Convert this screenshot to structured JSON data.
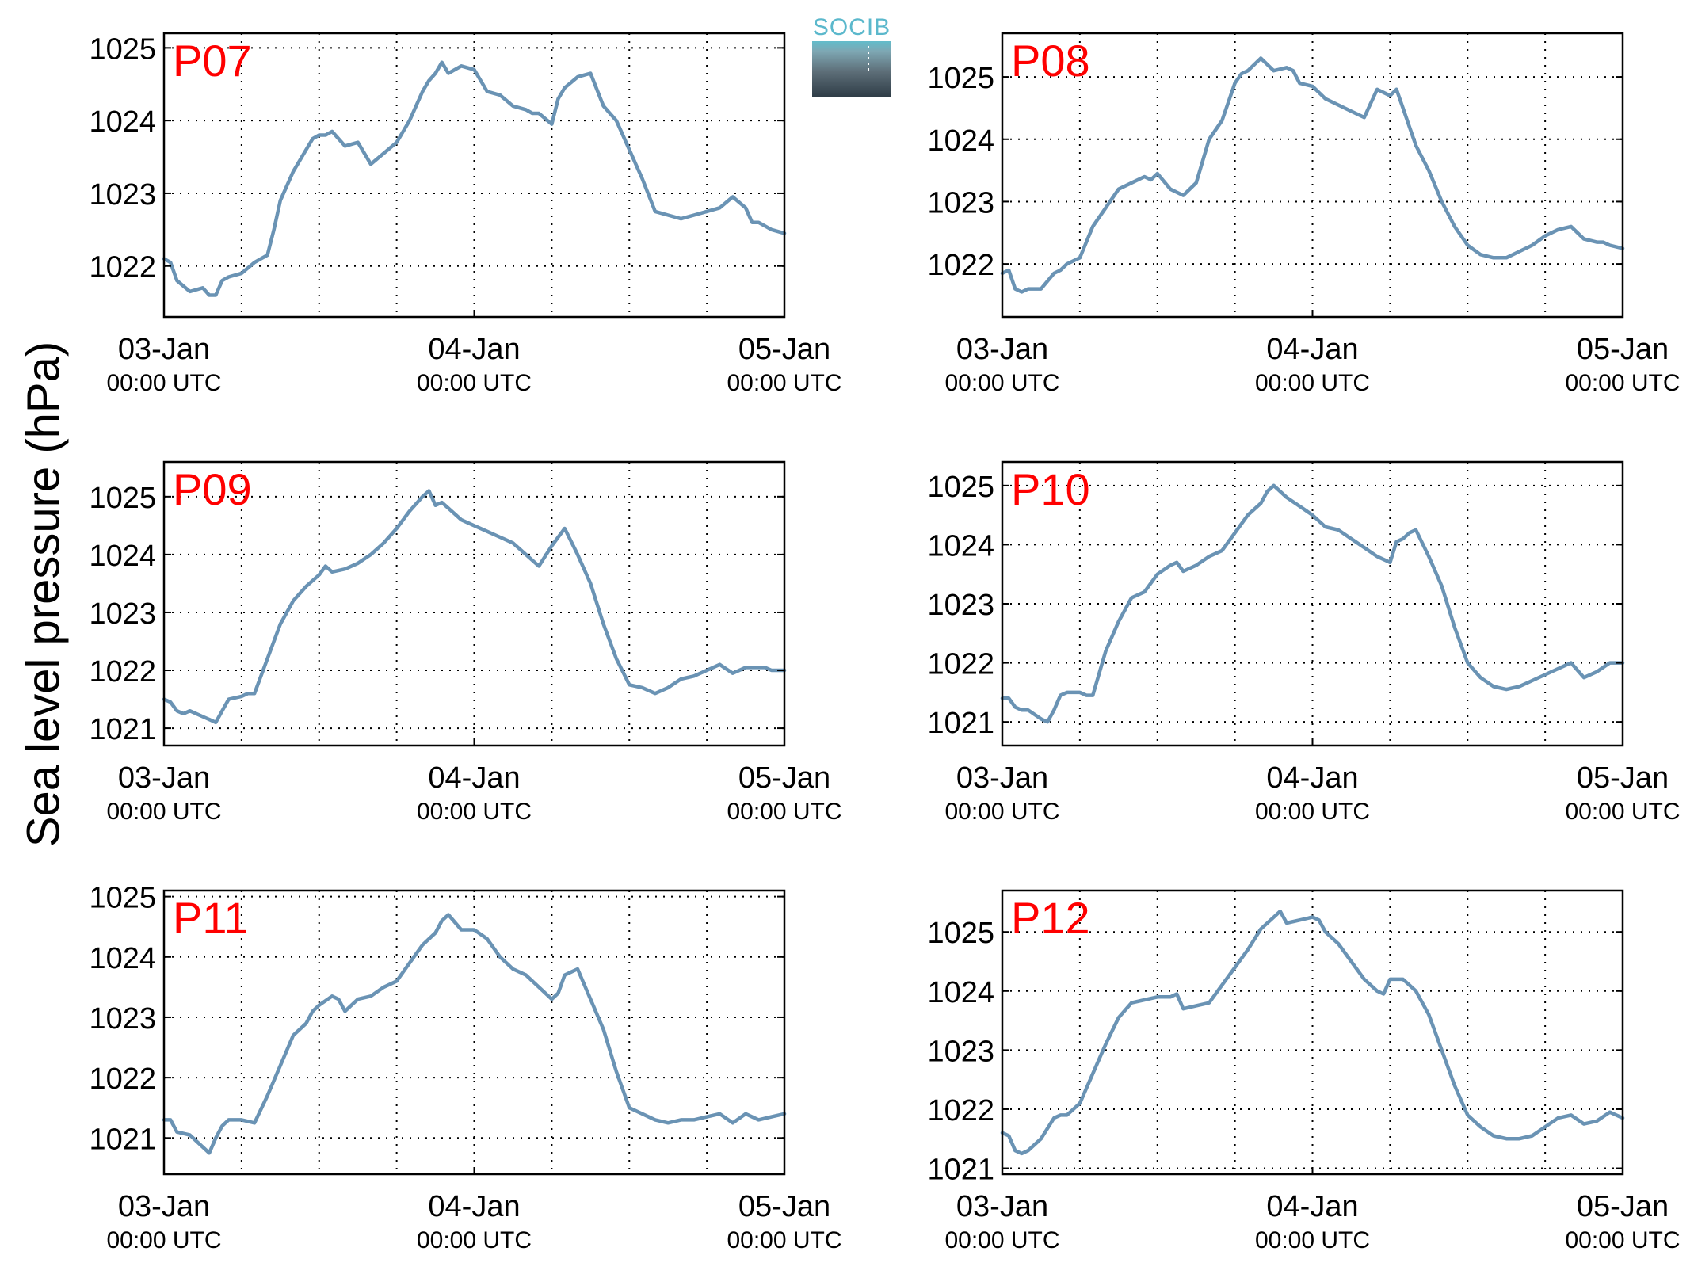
{
  "figure": {
    "ylabel": "Sea level pressure (hPa)",
    "logo_text": "SOCIB",
    "line_color": "#6a93b4",
    "station_label_color": "#ff0000"
  },
  "chart_data": [
    {
      "type": "line",
      "title": "P07",
      "x_unit": "hours since 03-Jan 00:00 UTC",
      "x_ticks": [
        {
          "value": 0,
          "day": "03-Jan",
          "time": "00:00 UTC"
        },
        {
          "value": 24,
          "day": "04-Jan",
          "time": "00:00 UTC"
        },
        {
          "value": 48,
          "day": "05-Jan",
          "time": "00:00 UTC"
        }
      ],
      "xlim": [
        0,
        48
      ],
      "ylim": [
        1021.3,
        1025.2
      ],
      "y_ticks": [
        1022,
        1023,
        1024,
        1025
      ],
      "grid": true,
      "series": [
        {
          "x": [
            0,
            0.5,
            1,
            2,
            3,
            3.5,
            4,
            4.5,
            5,
            6,
            7,
            7.5,
            8,
            8.5,
            9,
            10,
            11,
            11.5,
            12,
            12.5,
            13,
            14,
            15,
            16,
            17,
            18,
            19,
            20,
            20.5,
            21,
            21.5,
            22,
            23,
            24,
            25,
            26,
            27,
            28,
            28.5,
            29,
            30,
            30.5,
            31,
            32,
            33,
            34,
            35,
            36,
            37,
            38,
            39,
            40,
            41,
            42,
            43,
            44,
            45,
            45.5,
            46,
            47,
            48
          ],
          "y": [
            1022.1,
            1022.05,
            1021.8,
            1021.65,
            1021.7,
            1021.6,
            1021.6,
            1021.8,
            1021.85,
            1021.9,
            1022.05,
            1022.1,
            1022.15,
            1022.5,
            1022.9,
            1023.3,
            1023.6,
            1023.75,
            1023.8,
            1023.8,
            1023.85,
            1023.65,
            1023.7,
            1023.4,
            1023.55,
            1023.7,
            1024.0,
            1024.4,
            1024.55,
            1024.65,
            1024.8,
            1024.65,
            1024.75,
            1024.7,
            1024.4,
            1024.35,
            1024.2,
            1024.15,
            1024.1,
            1024.1,
            1023.95,
            1024.3,
            1024.45,
            1024.6,
            1024.65,
            1024.2,
            1024.0,
            1023.6,
            1023.2,
            1022.75,
            1022.7,
            1022.65,
            1022.7,
            1022.75,
            1022.8,
            1022.95,
            1022.8,
            1022.6,
            1022.6,
            1022.5,
            1022.45
          ]
        }
      ]
    },
    {
      "type": "line",
      "title": "P08",
      "x_unit": "hours since 03-Jan 00:00 UTC",
      "x_ticks": [
        {
          "value": 0,
          "day": "03-Jan",
          "time": "00:00 UTC"
        },
        {
          "value": 24,
          "day": "04-Jan",
          "time": "00:00 UTC"
        },
        {
          "value": 48,
          "day": "05-Jan",
          "time": "00:00 UTC"
        }
      ],
      "xlim": [
        0,
        48
      ],
      "ylim": [
        1021.15,
        1025.7
      ],
      "y_ticks": [
        1022,
        1023,
        1024,
        1025
      ],
      "grid": true,
      "series": [
        {
          "x": [
            0,
            0.5,
            1,
            1.5,
            2,
            3,
            4,
            4.5,
            5,
            6,
            7,
            8,
            9,
            10,
            11,
            11.5,
            12,
            13,
            14,
            15,
            16,
            17,
            18,
            18.5,
            19,
            20,
            21,
            22,
            22.5,
            23,
            24,
            25,
            26,
            27,
            28,
            29,
            30,
            30.5,
            31,
            31.5,
            32,
            33,
            34,
            35,
            36,
            37,
            38,
            38.5,
            39,
            40,
            41,
            42,
            43,
            44,
            45,
            46,
            46.5,
            47,
            48
          ],
          "y": [
            1021.85,
            1021.9,
            1021.6,
            1021.55,
            1021.6,
            1021.6,
            1021.85,
            1021.9,
            1022.0,
            1022.1,
            1022.6,
            1022.9,
            1023.2,
            1023.3,
            1023.4,
            1023.35,
            1023.45,
            1023.2,
            1023.1,
            1023.3,
            1024.0,
            1024.3,
            1024.9,
            1025.05,
            1025.1,
            1025.3,
            1025.1,
            1025.15,
            1025.1,
            1024.9,
            1024.85,
            1024.65,
            1024.55,
            1024.45,
            1024.35,
            1024.8,
            1024.7,
            1024.8,
            1024.5,
            1024.2,
            1023.9,
            1023.5,
            1023.0,
            1022.6,
            1022.3,
            1022.15,
            1022.1,
            1022.1,
            1022.1,
            1022.2,
            1022.3,
            1022.45,
            1022.55,
            1022.6,
            1022.4,
            1022.35,
            1022.35,
            1022.3,
            1022.25
          ]
        }
      ]
    },
    {
      "type": "line",
      "title": "P09",
      "x_unit": "hours since 03-Jan 00:00 UTC",
      "x_ticks": [
        {
          "value": 0,
          "day": "03-Jan",
          "time": "00:00 UTC"
        },
        {
          "value": 24,
          "day": "04-Jan",
          "time": "00:00 UTC"
        },
        {
          "value": 48,
          "day": "05-Jan",
          "time": "00:00 UTC"
        }
      ],
      "xlim": [
        0,
        48
      ],
      "ylim": [
        1020.7,
        1025.6
      ],
      "y_ticks": [
        1021,
        1022,
        1023,
        1024,
        1025
      ],
      "grid": true,
      "series": [
        {
          "x": [
            0,
            0.5,
            1,
            1.5,
            2,
            3,
            3.5,
            4,
            4.5,
            5,
            6,
            6.5,
            7,
            8,
            9,
            10,
            11,
            12,
            12.5,
            13,
            14,
            15,
            16,
            17,
            18,
            19,
            20,
            20.5,
            21,
            21.5,
            22,
            23,
            24,
            25,
            26,
            27,
            28,
            29,
            30,
            30.5,
            31,
            32,
            33,
            34,
            35,
            36,
            37,
            38,
            39,
            40,
            41,
            42,
            43,
            44,
            45,
            46,
            46.5,
            47,
            48
          ],
          "y": [
            1021.5,
            1021.45,
            1021.3,
            1021.25,
            1021.3,
            1021.2,
            1021.15,
            1021.1,
            1021.3,
            1021.5,
            1021.55,
            1021.6,
            1021.6,
            1022.2,
            1022.8,
            1023.2,
            1023.45,
            1023.65,
            1023.8,
            1023.7,
            1023.75,
            1023.85,
            1024.0,
            1024.2,
            1024.45,
            1024.75,
            1025.0,
            1025.1,
            1024.85,
            1024.9,
            1024.8,
            1024.6,
            1024.5,
            1024.4,
            1024.3,
            1024.2,
            1024.0,
            1023.8,
            1024.15,
            1024.3,
            1024.45,
            1024.0,
            1023.5,
            1022.8,
            1022.2,
            1021.75,
            1021.7,
            1021.6,
            1021.7,
            1021.85,
            1021.9,
            1022.0,
            1022.1,
            1021.95,
            1022.05,
            1022.05,
            1022.05,
            1022.0,
            1022.0
          ]
        }
      ]
    },
    {
      "type": "line",
      "title": "P10",
      "x_unit": "hours since 03-Jan 00:00 UTC",
      "x_ticks": [
        {
          "value": 0,
          "day": "03-Jan",
          "time": "00:00 UTC"
        },
        {
          "value": 24,
          "day": "04-Jan",
          "time": "00:00 UTC"
        },
        {
          "value": 48,
          "day": "05-Jan",
          "time": "00:00 UTC"
        }
      ],
      "xlim": [
        0,
        48
      ],
      "ylim": [
        1020.6,
        1025.4
      ],
      "y_ticks": [
        1021,
        1022,
        1023,
        1024,
        1025
      ],
      "grid": true,
      "series": [
        {
          "x": [
            0,
            0.5,
            1,
            1.5,
            2,
            3,
            3.5,
            4,
            4.5,
            5,
            6,
            6.5,
            7,
            8,
            9,
            10,
            11,
            12,
            13,
            13.5,
            14,
            15,
            16,
            17,
            18,
            19,
            20,
            20.5,
            21,
            22,
            23,
            24,
            25,
            26,
            27,
            28,
            29,
            30,
            30.5,
            31,
            31.5,
            32,
            33,
            34,
            35,
            36,
            37,
            38,
            39,
            40,
            41,
            42,
            43,
            44,
            45,
            46,
            47,
            48
          ],
          "y": [
            1021.4,
            1021.4,
            1021.25,
            1021.2,
            1021.2,
            1021.05,
            1021.0,
            1021.2,
            1021.45,
            1021.5,
            1021.5,
            1021.45,
            1021.45,
            1022.2,
            1022.7,
            1023.1,
            1023.2,
            1023.5,
            1023.65,
            1023.7,
            1023.55,
            1023.65,
            1023.8,
            1023.9,
            1024.2,
            1024.5,
            1024.7,
            1024.9,
            1025.0,
            1024.8,
            1024.65,
            1024.5,
            1024.3,
            1024.25,
            1024.1,
            1023.95,
            1023.8,
            1023.7,
            1024.05,
            1024.1,
            1024.2,
            1024.25,
            1023.8,
            1023.3,
            1022.6,
            1022.0,
            1021.75,
            1021.6,
            1021.55,
            1021.6,
            1021.7,
            1021.8,
            1021.9,
            1022.0,
            1021.75,
            1021.85,
            1022.0,
            1022.0
          ]
        }
      ]
    },
    {
      "type": "line",
      "title": "P11",
      "x_unit": "hours since 03-Jan 00:00 UTC",
      "x_ticks": [
        {
          "value": 0,
          "day": "03-Jan",
          "time": "00:00 UTC"
        },
        {
          "value": 24,
          "day": "04-Jan",
          "time": "00:00 UTC"
        },
        {
          "value": 48,
          "day": "05-Jan",
          "time": "00:00 UTC"
        }
      ],
      "xlim": [
        0,
        48
      ],
      "ylim": [
        1020.4,
        1025.1
      ],
      "y_ticks": [
        1021,
        1022,
        1023,
        1024,
        1025
      ],
      "grid": true,
      "series": [
        {
          "x": [
            0,
            0.5,
            1,
            2,
            3,
            3.5,
            4,
            4.5,
            5,
            6,
            7,
            8,
            9,
            10,
            11,
            11.5,
            12,
            13,
            13.5,
            14,
            15,
            16,
            17,
            18,
            19,
            20,
            21,
            21.5,
            22,
            23,
            24,
            25,
            26,
            27,
            28,
            29,
            30,
            30.5,
            31,
            31.5,
            32,
            33,
            34,
            35,
            36,
            37,
            38,
            39,
            40,
            41,
            42,
            43,
            44,
            45,
            46,
            47,
            48
          ],
          "y": [
            1021.3,
            1021.3,
            1021.1,
            1021.05,
            1020.85,
            1020.75,
            1021.0,
            1021.2,
            1021.3,
            1021.3,
            1021.25,
            1021.7,
            1022.2,
            1022.7,
            1022.9,
            1023.1,
            1023.2,
            1023.35,
            1023.3,
            1023.1,
            1023.3,
            1023.35,
            1023.5,
            1023.6,
            1023.9,
            1024.2,
            1024.4,
            1024.6,
            1024.7,
            1024.45,
            1024.45,
            1024.3,
            1024.0,
            1023.8,
            1023.7,
            1023.5,
            1023.3,
            1023.4,
            1023.7,
            1023.75,
            1023.8,
            1023.3,
            1022.8,
            1022.1,
            1021.5,
            1021.4,
            1021.3,
            1021.25,
            1021.3,
            1021.3,
            1021.35,
            1021.4,
            1021.25,
            1021.4,
            1021.3,
            1021.35,
            1021.4
          ]
        }
      ]
    },
    {
      "type": "line",
      "title": "P12",
      "x_unit": "hours since 03-Jan 00:00 UTC",
      "x_ticks": [
        {
          "value": 0,
          "day": "03-Jan",
          "time": "00:00 UTC"
        },
        {
          "value": 24,
          "day": "04-Jan",
          "time": "00:00 UTC"
        },
        {
          "value": 48,
          "day": "05-Jan",
          "time": "00:00 UTC"
        }
      ],
      "xlim": [
        0,
        48
      ],
      "ylim": [
        1020.9,
        1025.7
      ],
      "y_ticks": [
        1021,
        1022,
        1023,
        1024,
        1025
      ],
      "grid": true,
      "series": [
        {
          "x": [
            0,
            0.5,
            1,
            1.5,
            2,
            3,
            4,
            4.5,
            5,
            6,
            7,
            8,
            9,
            10,
            11,
            12,
            13,
            13.5,
            14,
            15,
            16,
            17,
            18,
            19,
            20,
            21,
            21.5,
            22,
            23,
            24,
            24.5,
            25,
            26,
            27,
            28,
            29,
            29.5,
            30,
            31,
            32,
            33,
            34,
            35,
            36,
            37,
            38,
            39,
            40,
            41,
            42,
            43,
            44,
            45,
            46,
            47,
            48
          ],
          "y": [
            1021.6,
            1021.55,
            1021.3,
            1021.25,
            1021.3,
            1021.5,
            1021.85,
            1021.9,
            1021.9,
            1022.1,
            1022.6,
            1023.1,
            1023.55,
            1023.8,
            1023.85,
            1023.9,
            1023.9,
            1023.95,
            1023.7,
            1023.75,
            1023.8,
            1024.1,
            1024.4,
            1024.7,
            1025.05,
            1025.25,
            1025.35,
            1025.15,
            1025.2,
            1025.25,
            1025.2,
            1025.0,
            1024.8,
            1024.5,
            1024.2,
            1024.0,
            1023.95,
            1024.2,
            1024.2,
            1024.0,
            1023.6,
            1023.0,
            1022.4,
            1021.9,
            1021.7,
            1021.55,
            1021.5,
            1021.5,
            1021.55,
            1021.7,
            1021.85,
            1021.9,
            1021.75,
            1021.8,
            1021.95,
            1021.85
          ]
        }
      ]
    }
  ]
}
